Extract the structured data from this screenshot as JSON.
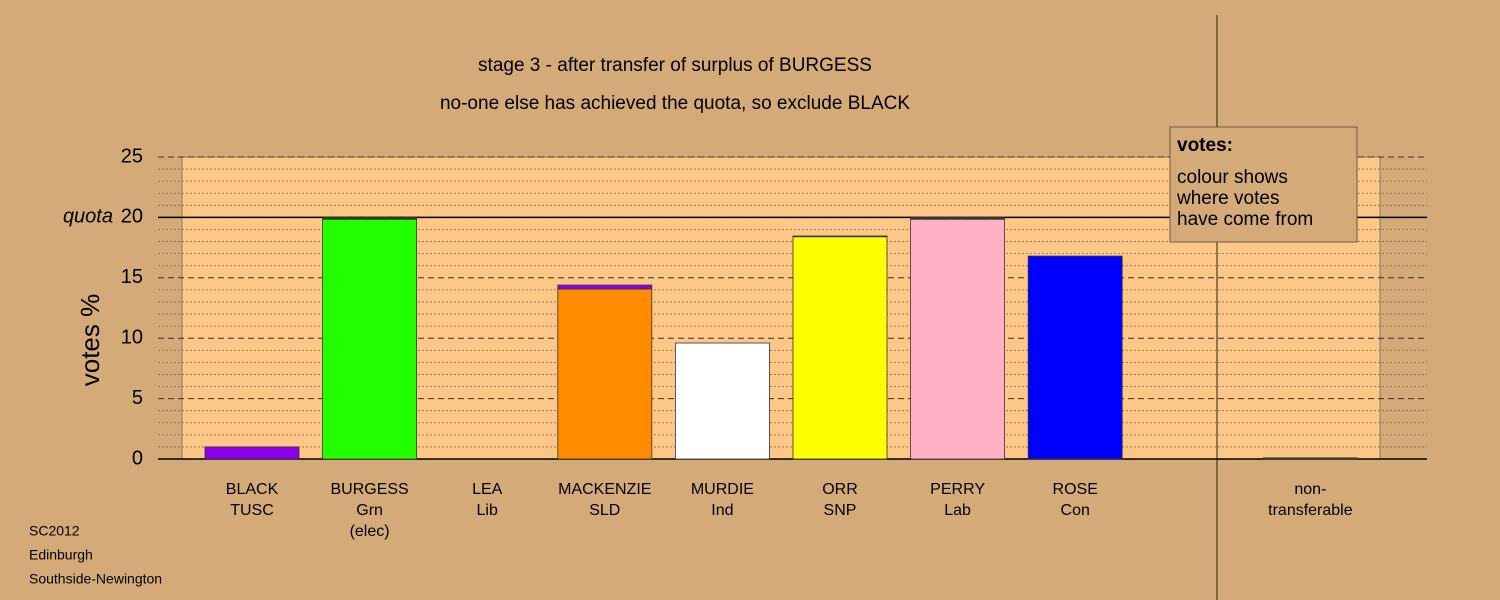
{
  "chart_data": {
    "type": "stacked-bar",
    "title": "stage 3 - after transfer of surplus of BURGESS",
    "subtitle": "no-one else has achieved the quota, so exclude BLACK",
    "y_label": "votes %",
    "categories": [
      [
        "BLACK",
        "TUSC"
      ],
      [
        "BURGESS",
        "Grn",
        "(elec)"
      ],
      [
        "LEA",
        "Lib"
      ],
      [
        "MACKENZIE",
        "SLD"
      ],
      [
        "MURDIE",
        "Ind"
      ],
      [
        "ORR",
        "SNP"
      ],
      [
        "PERRY",
        "Lab"
      ],
      [
        "ROSE",
        "Con"
      ],
      null,
      [
        "non-",
        "transferable"
      ]
    ],
    "series": [
      {
        "colors": [
          "#8b00ee",
          "#22ff00",
          "#ff8c00",
          "#ff8c00",
          "#ffffff",
          "#ffff00",
          "#ffb0c4",
          "#0000ff",
          null,
          "#555555"
        ],
        "values": [
          1.0,
          19.85,
          0,
          14.07,
          9.6,
          18.4,
          19.85,
          16.8,
          null,
          0.1
        ]
      },
      {
        "colors": [
          null,
          "#3a3a1a",
          null,
          "#8b00ee",
          null,
          "#3a3a1a",
          "#3a3a1a",
          null,
          null,
          null
        ],
        "values": [
          null,
          0.15,
          null,
          0.33,
          null,
          0.06,
          0.15,
          null,
          null,
          null
        ]
      }
    ],
    "ylim": [
      0,
      25
    ],
    "yticks": [
      0,
      5,
      10,
      15,
      20,
      25
    ],
    "minor_yticks": [
      1,
      2,
      3,
      4,
      6,
      7,
      8,
      9,
      11,
      12,
      13,
      14,
      16,
      17,
      18,
      19,
      21,
      22,
      23,
      24
    ],
    "quota": {
      "value": 20,
      "label": "quota"
    },
    "legend_box": [
      "votes:",
      "colour shows",
      "where votes",
      "have come from"
    ],
    "footnote": [
      "SC2012",
      "Edinburgh",
      "Southside-Newington"
    ]
  }
}
